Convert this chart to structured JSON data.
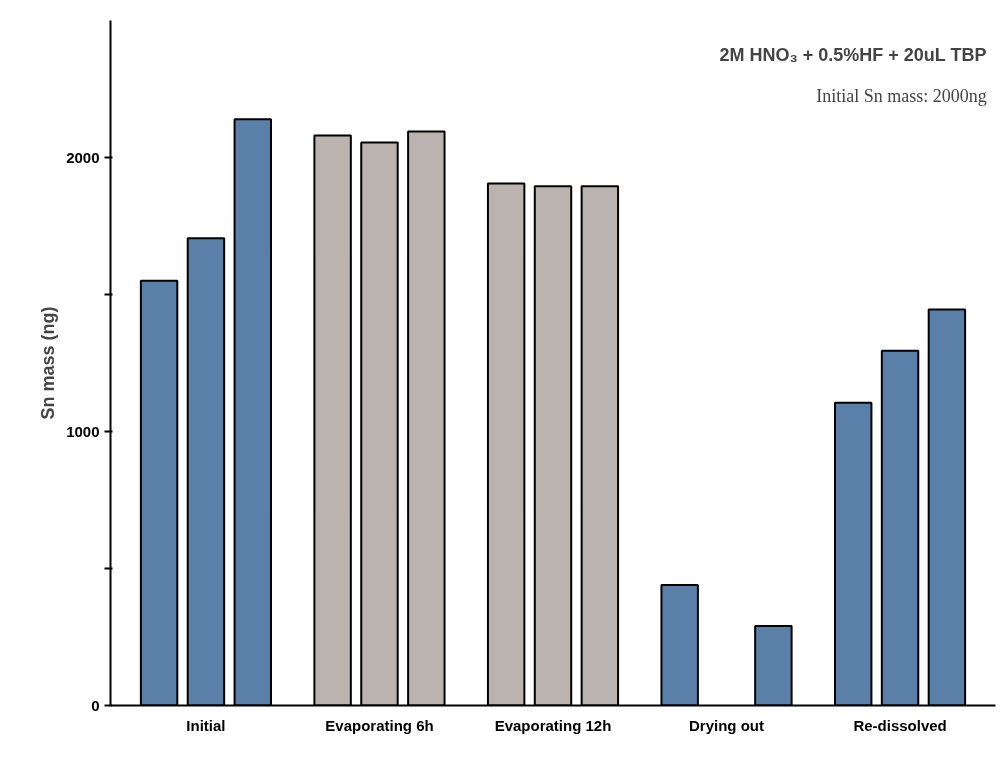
{
  "chart_data": {
    "type": "bar",
    "ylabel": "Sn mass (ng)",
    "categories": [
      "Initial",
      "Evaporating 6h",
      "Evaporating 12h",
      "Drying out",
      "Re-dissolved"
    ],
    "series": [
      {
        "colors": [
          "#5a7fa8",
          "#bab3b0",
          "#bab3b0",
          "#5a7fa8",
          "#5a7fa8"
        ],
        "values": [
          1550,
          2080,
          1905,
          440,
          1105
        ]
      },
      {
        "colors": [
          "#5a7fa8",
          "#bab3b0",
          "#bab3b0",
          "#5a7fa8",
          "#5a7fa8"
        ],
        "values": [
          1705,
          2055,
          1895,
          null,
          1295
        ]
      },
      {
        "colors": [
          "#5a7fa8",
          "#bab3b0",
          "#bab3b0",
          "#5a7fa8",
          "#5a7fa8"
        ],
        "values": [
          2140,
          2095,
          1895,
          290,
          1445
        ]
      }
    ],
    "ylim": [
      0,
      2500
    ],
    "yticks": [
      0,
      {
        "value": 500,
        "label": null
      },
      1000,
      {
        "value": 1500,
        "label": null
      },
      2000
    ],
    "grid": false,
    "annotations": [
      "2M HNO₃ + 0.5%HF + 20uL TBP",
      "Initial Sn mass: 2000ng"
    ]
  }
}
